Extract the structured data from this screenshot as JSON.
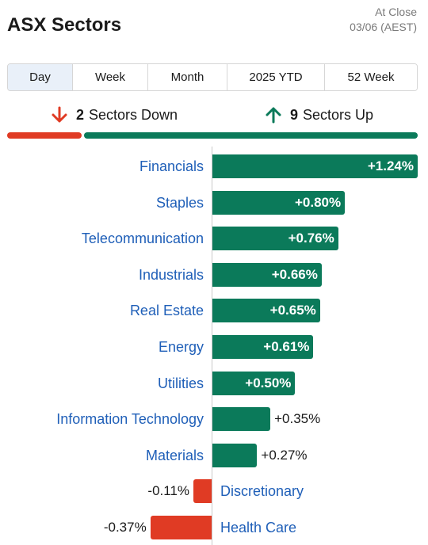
{
  "header": {
    "title": "ASX Sectors",
    "status_line1": "At Close",
    "status_line2": "03/06 (AEST)"
  },
  "tabs": [
    {
      "label": "Day",
      "active": true
    },
    {
      "label": "Week",
      "active": false
    },
    {
      "label": "Month",
      "active": false
    },
    {
      "label": "2025 YTD",
      "active": false
    },
    {
      "label": "52 Week",
      "active": false
    }
  ],
  "summary": {
    "down_count": "2",
    "down_label": "Sectors Down",
    "up_count": "9",
    "up_label": "Sectors Up",
    "down_icon": "arrow-down-icon",
    "up_icon": "arrow-up-icon"
  },
  "colors": {
    "up": "#0b7a5a",
    "down": "#e03b24",
    "link": "#1f5fb8"
  },
  "chart_data": {
    "type": "bar",
    "categories": [
      "Financials",
      "Staples",
      "Telecommunication",
      "Industrials",
      "Real Estate",
      "Energy",
      "Utilities",
      "Information Technology",
      "Materials",
      "Discretionary",
      "Health Care"
    ],
    "values": [
      1.24,
      0.8,
      0.76,
      0.66,
      0.65,
      0.61,
      0.5,
      0.35,
      0.27,
      -0.11,
      -0.37
    ],
    "labels": [
      "+1.24%",
      "+0.80%",
      "+0.76%",
      "+0.66%",
      "+0.65%",
      "+0.61%",
      "+0.50%",
      "+0.35%",
      "+0.27%",
      "-0.11%",
      "-0.37%"
    ]
  }
}
